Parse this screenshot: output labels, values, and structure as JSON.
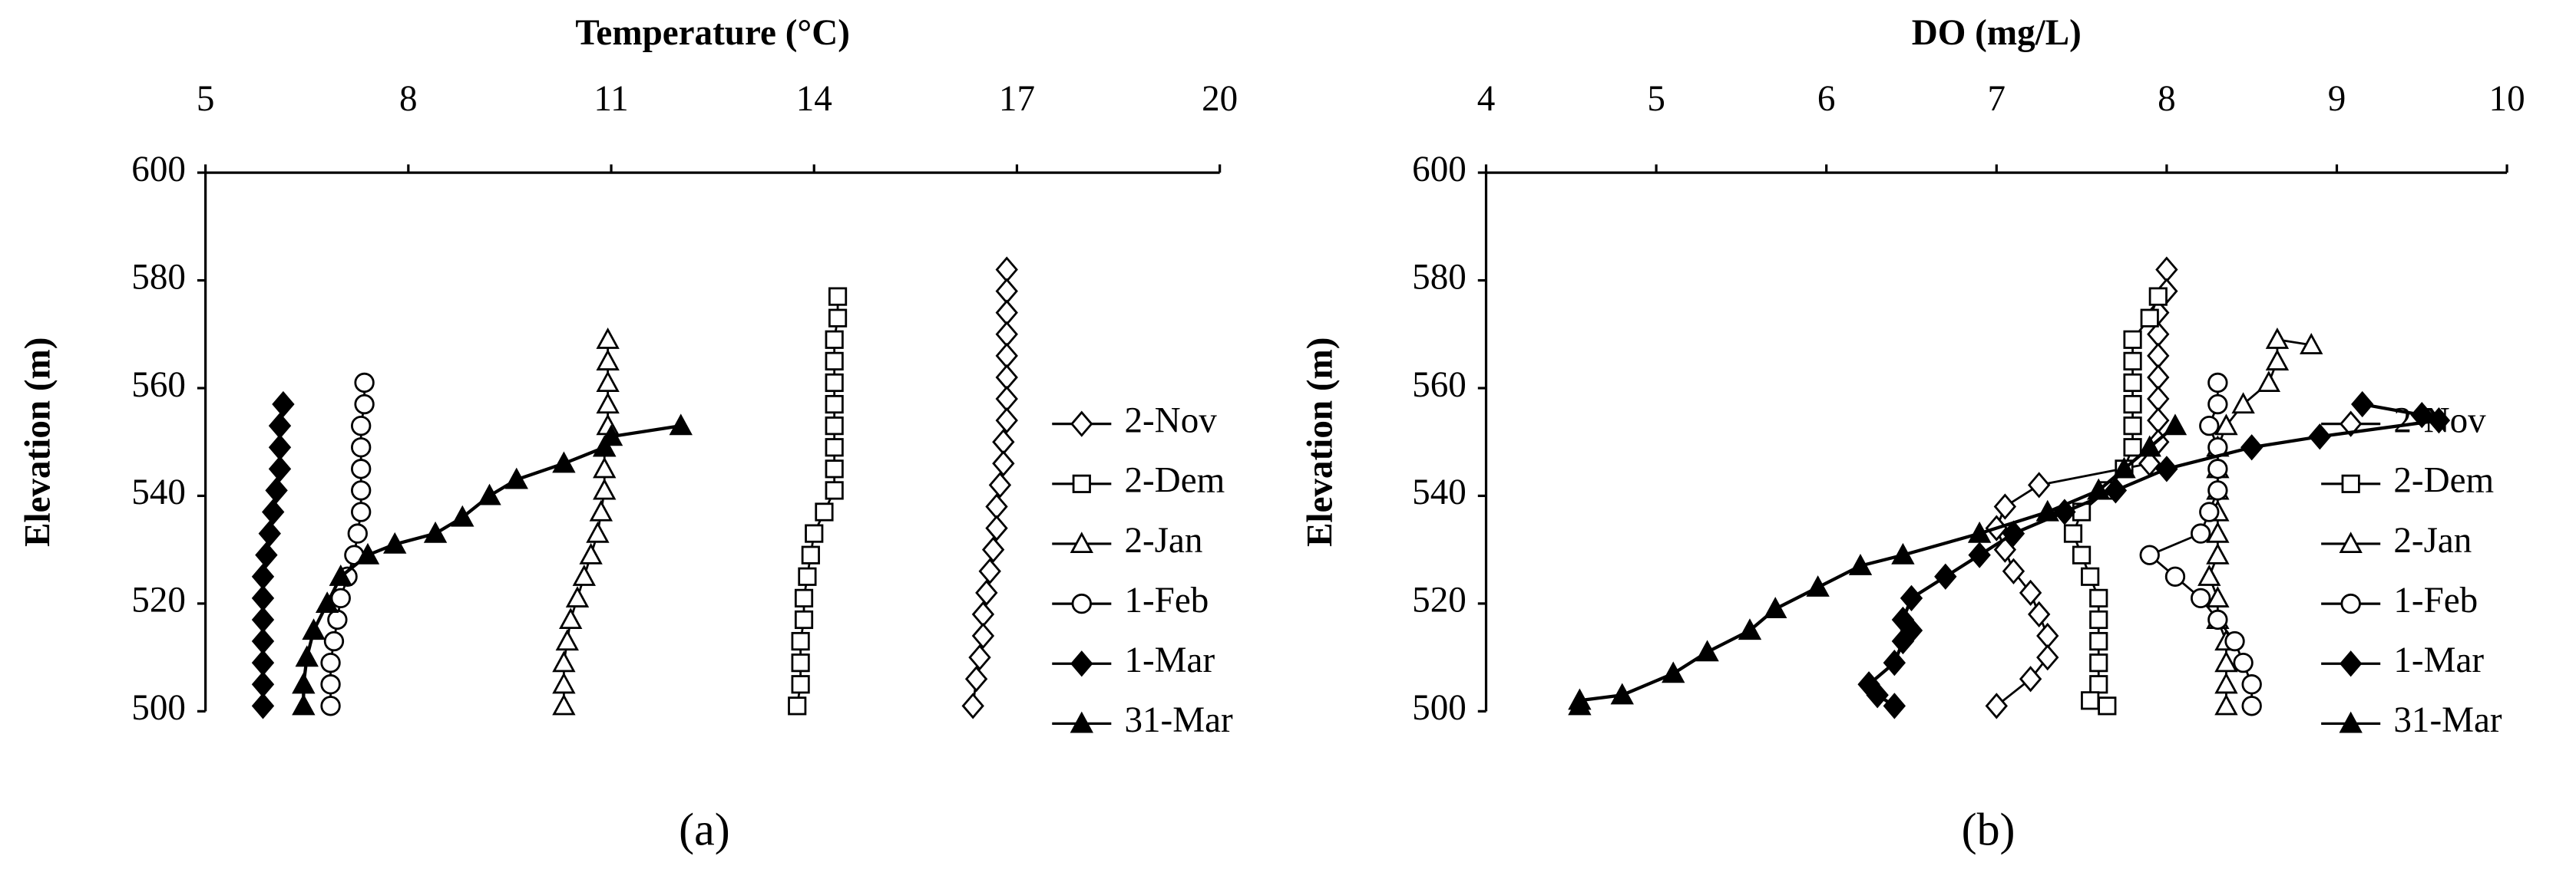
{
  "chart_data": [
    {
      "type": "line",
      "x_label": "Temperature (°C)",
      "y_label": "Elevation (m)",
      "panel_label": "(a)",
      "xlim": [
        5,
        20
      ],
      "xticks": [
        5,
        8,
        11,
        14,
        17,
        20
      ],
      "ylim": [
        500,
        600
      ],
      "yticks": [
        500,
        520,
        540,
        560,
        580,
        600
      ],
      "x_axis_position": "top",
      "legend": "right",
      "grid": false,
      "series": [
        {
          "name": "2-Nov",
          "marker": "diamond",
          "filled": false,
          "color": "#000000",
          "x": [
            16.85,
            16.85,
            16.85,
            16.85,
            16.85,
            16.85,
            16.85,
            16.85,
            16.8,
            16.8,
            16.75,
            16.7,
            16.7,
            16.65,
            16.6,
            16.55,
            16.5,
            16.5,
            16.45,
            16.4,
            16.35
          ],
          "values": [
            582,
            578,
            574,
            570,
            566,
            562,
            558,
            554,
            550,
            546,
            542,
            538,
            534,
            530,
            526,
            522,
            518,
            514,
            510,
            506,
            501
          ]
        },
        {
          "name": "2-Dem",
          "marker": "square",
          "filled": false,
          "color": "#000000",
          "x": [
            14.35,
            14.35,
            14.3,
            14.3,
            14.3,
            14.3,
            14.3,
            14.3,
            14.3,
            14.3,
            14.15,
            14.0,
            13.95,
            13.9,
            13.85,
            13.85,
            13.8,
            13.8,
            13.8,
            13.75
          ],
          "values": [
            577,
            573,
            569,
            565,
            561,
            557,
            553,
            549,
            545,
            541,
            537,
            533,
            529,
            525,
            521,
            517,
            513,
            509,
            505,
            501
          ]
        },
        {
          "name": "2-Jan",
          "marker": "triangle",
          "filled": false,
          "color": "#000000",
          "x": [
            10.95,
            10.95,
            10.95,
            10.95,
            10.95,
            10.9,
            10.9,
            10.9,
            10.85,
            10.8,
            10.7,
            10.6,
            10.5,
            10.4,
            10.35,
            10.3,
            10.3,
            10.3
          ],
          "values": [
            569,
            565,
            561,
            557,
            553,
            549,
            545,
            541,
            537,
            533,
            529,
            525,
            521,
            517,
            513,
            509,
            505,
            501
          ]
        },
        {
          "name": "1-Feb",
          "marker": "circle",
          "filled": false,
          "color": "#000000",
          "x": [
            7.35,
            7.35,
            7.3,
            7.3,
            7.3,
            7.3,
            7.3,
            7.25,
            7.2,
            7.1,
            7.0,
            6.95,
            6.9,
            6.85,
            6.85,
            6.85
          ],
          "values": [
            561,
            557,
            553,
            549,
            545,
            541,
            537,
            533,
            529,
            525,
            521,
            517,
            513,
            509,
            505,
            501
          ]
        },
        {
          "name": "1-Mar",
          "marker": "diamond",
          "filled": true,
          "color": "#000000",
          "x": [
            6.15,
            6.1,
            6.1,
            6.1,
            6.05,
            6.0,
            5.95,
            5.9,
            5.85,
            5.85,
            5.85,
            5.85,
            5.85,
            5.85,
            5.85
          ],
          "values": [
            557,
            553,
            549,
            545,
            541,
            537,
            533,
            529,
            525,
            521,
            517,
            513,
            509,
            505,
            501
          ]
        },
        {
          "name": "31-Mar",
          "marker": "triangle",
          "filled": true,
          "color": "#000000",
          "x": [
            12.03,
            11.0,
            10.9,
            10.3,
            9.6,
            9.2,
            8.8,
            8.4,
            7.8,
            7.4,
            7.0,
            6.8,
            6.6,
            6.5,
            6.45,
            6.45
          ],
          "values": [
            553,
            551,
            549,
            546,
            543,
            540,
            536,
            533,
            531,
            529,
            525,
            520,
            515,
            510,
            505,
            501
          ]
        }
      ]
    },
    {
      "type": "line",
      "x_label": "DO (mg/L)",
      "y_label": "Elevation (m)",
      "panel_label": "(b)",
      "xlim": [
        4,
        10
      ],
      "xticks": [
        4,
        5,
        6,
        7,
        8,
        9,
        10
      ],
      "ylim": [
        500,
        600
      ],
      "yticks": [
        500,
        520,
        540,
        560,
        580,
        600
      ],
      "x_axis_position": "top",
      "legend": "right",
      "grid": false,
      "series": [
        {
          "name": "2-Nov",
          "marker": "diamond",
          "filled": false,
          "color": "#000000",
          "x": [
            8.0,
            8.0,
            7.95,
            7.95,
            7.95,
            7.95,
            7.95,
            7.95,
            7.95,
            7.9,
            7.25,
            7.05,
            7.0,
            7.05,
            7.1,
            7.2,
            7.25,
            7.3,
            7.3,
            7.2,
            7.0
          ],
          "values": [
            582,
            578,
            574,
            570,
            566,
            562,
            558,
            554,
            550,
            546,
            542,
            538,
            534,
            530,
            526,
            522,
            518,
            514,
            510,
            506,
            501
          ]
        },
        {
          "name": "2-Dem",
          "marker": "square",
          "filled": false,
          "color": "#000000",
          "x": [
            7.95,
            7.9,
            7.8,
            7.8,
            7.8,
            7.8,
            7.8,
            7.8,
            7.75,
            7.65,
            7.5,
            7.45,
            7.5,
            7.55,
            7.6,
            7.6,
            7.6,
            7.6,
            7.6,
            7.55,
            7.65
          ],
          "values": [
            577,
            573,
            569,
            565,
            561,
            557,
            553,
            549,
            545,
            541,
            537,
            533,
            529,
            525,
            521,
            517,
            513,
            509,
            505,
            502,
            501
          ]
        },
        {
          "name": "2-Jan",
          "marker": "triangle",
          "filled": false,
          "color": "#000000",
          "x": [
            8.85,
            8.65,
            8.65,
            8.6,
            8.45,
            8.35,
            8.3,
            8.3,
            8.3,
            8.3,
            8.3,
            8.3,
            8.25,
            8.3,
            8.3,
            8.35,
            8.35,
            8.35,
            8.35
          ],
          "values": [
            568,
            569,
            565,
            561,
            557,
            553,
            549,
            545,
            541,
            537,
            533,
            529,
            525,
            521,
            517,
            513,
            509,
            505,
            501
          ]
        },
        {
          "name": "1-Feb",
          "marker": "circle",
          "filled": false,
          "color": "#000000",
          "x": [
            8.3,
            8.3,
            8.25,
            8.3,
            8.3,
            8.3,
            8.25,
            8.2,
            7.9,
            8.05,
            8.2,
            8.3,
            8.4,
            8.45,
            8.5,
            8.5
          ],
          "values": [
            561,
            557,
            553,
            549,
            545,
            541,
            537,
            533,
            529,
            525,
            521,
            517,
            513,
            509,
            505,
            501
          ]
        },
        {
          "name": "1-Mar",
          "marker": "diamond",
          "filled": true,
          "color": "#000000",
          "x": [
            9.15,
            9.5,
            9.6,
            8.9,
            8.5,
            8.0,
            7.7,
            7.4,
            7.1,
            6.9,
            6.7,
            6.5,
            6.45,
            6.5,
            6.45,
            6.4,
            6.25,
            6.3,
            6.4
          ],
          "values": [
            557,
            555,
            554,
            551,
            549,
            545,
            541,
            537,
            533,
            529,
            525,
            521,
            517,
            515,
            513,
            509,
            505,
            503,
            501
          ]
        },
        {
          "name": "31-Mar",
          "marker": "triangle",
          "filled": true,
          "color": "#000000",
          "x": [
            8.05,
            7.9,
            7.75,
            7.6,
            7.3,
            6.9,
            6.45,
            6.2,
            5.95,
            5.7,
            5.55,
            5.3,
            5.1,
            4.8,
            4.55,
            4.55
          ],
          "values": [
            553,
            549,
            545,
            541,
            537,
            533,
            529,
            527,
            523,
            519,
            515,
            511,
            507,
            503,
            502,
            501
          ]
        }
      ]
    }
  ]
}
